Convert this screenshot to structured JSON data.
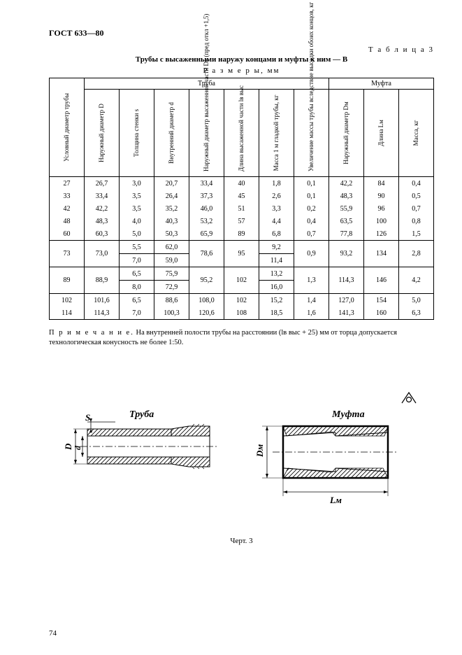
{
  "header": {
    "gost": "ГОСТ  633—80",
    "table_num": "Т а б л и ц а  3",
    "title": "Трубы с высаженными наружу концами и муфты к ним — В",
    "sizes": "Р а з м е р ы,  мм"
  },
  "columns": {
    "group_pipe": "Труба",
    "group_coupling": "Муфта",
    "c0": "Условный диаметр трубы",
    "c1": "Наружный диаметр D",
    "c2": "Толщина стенки s",
    "c3": "Внутренний диаметр d",
    "c4": "Наружный диаметр высаженной части Dв (пред откл +1,5)",
    "c5": "Длина высаженной части lв выс",
    "c6": "Масса 1 м гладкой трубы, кг",
    "c7": "Увеличение массы трубы вследствие высадки обоих концов, кг",
    "c8": "Наружный диаметр Dм",
    "c9": "Длина Lм",
    "c10": "Масса, кг"
  },
  "rows": [
    [
      "27",
      "26,7",
      "3,0",
      "20,7",
      "33,4",
      "40",
      "1,8",
      "0,1",
      "42,2",
      "84",
      "0,4"
    ],
    [
      "33",
      "33,4",
      "3,5",
      "26,4",
      "37,3",
      "45",
      "2,6",
      "0,1",
      "48,3",
      "90",
      "0,5"
    ],
    [
      "42",
      "42,2",
      "3,5",
      "35,2",
      "46,0",
      "51",
      "3,3",
      "0,2",
      "55,9",
      "96",
      "0,7"
    ],
    [
      "48",
      "48,3",
      "4,0",
      "40,3",
      "53,2",
      "57",
      "4,4",
      "0,4",
      "63,5",
      "100",
      "0,8"
    ],
    [
      "60",
      "60,3",
      "5,0",
      "50,3",
      "65,9",
      "89",
      "6,8",
      "0,7",
      "77,8",
      "126",
      "1,5"
    ]
  ],
  "row73": {
    "d": "73",
    "D": "73,0",
    "Dv": "78,6",
    "lv": "95",
    "dm": "0,9",
    "Dm": "93,2",
    "Lm": "134",
    "Mm": "2,8",
    "a": {
      "s": "5,5",
      "di": "62,0",
      "m": "9,2"
    },
    "b": {
      "s": "7,0",
      "di": "59,0",
      "m": "11,4"
    }
  },
  "row89": {
    "d": "89",
    "D": "88,9",
    "Dv": "95,2",
    "lv": "102",
    "dm": "1,3",
    "Dm": "114,3",
    "Lm": "146",
    "Mm": "4,2",
    "a": {
      "s": "6,5",
      "di": "75,9",
      "m": "13,2"
    },
    "b": {
      "s": "8,0",
      "di": "72,9",
      "m": "16,0"
    }
  },
  "rowsB": [
    [
      "102",
      "101,6",
      "6,5",
      "88,6",
      "108,0",
      "102",
      "15,2",
      "1,4",
      "127,0",
      "154",
      "5,0"
    ],
    [
      "114",
      "114,3",
      "7,0",
      "100,3",
      "120,6",
      "108",
      "18,5",
      "1,6",
      "141,3",
      "160",
      "6,3"
    ]
  ],
  "note": {
    "label": "П р и м е ч а н и е.",
    "text": "  На внутренней полости трубы на расстоянии (lв выс + 25) мм от торца допускается технологическая конусность не более 1:50."
  },
  "fig": {
    "pipe_label": "Труба",
    "coupling_label": "Муфта",
    "D": "D",
    "d": "d",
    "s": "S",
    "Dm": "Dм",
    "Lm": "Lм",
    "caption": "Черт. 3"
  },
  "pagenum": "74"
}
